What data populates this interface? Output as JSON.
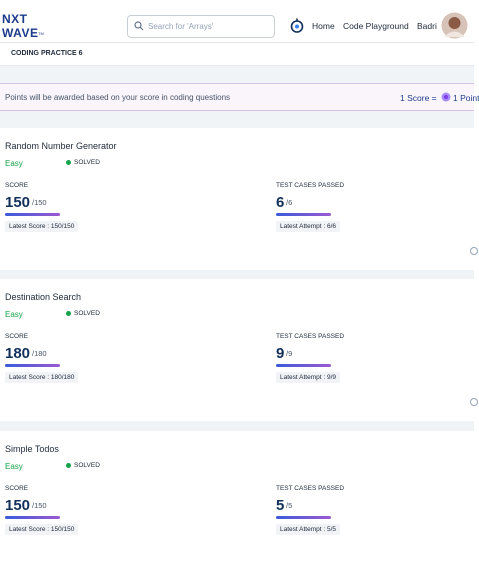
{
  "header": {
    "logo_top": "NXT",
    "logo_bottom": "WAVE",
    "logo_tm": "TM",
    "search_placeholder": "Search for 'Arrays'",
    "nav": [
      "Home",
      "Code Playground",
      "Badri"
    ]
  },
  "breadcrumb": "CODING PRACTICE 6",
  "banner": {
    "text": "Points will be awarded based on your score in coding questions",
    "formula_left": "1 Score =",
    "formula_right": "1 Point"
  },
  "questions": [
    {
      "title": "Random Number Generator",
      "difficulty": "Easy",
      "status": "SOLVED",
      "score_label": "SCORE",
      "score": "150",
      "score_total": "/150",
      "latest_score": "Latest Score : 150/150",
      "tests_label": "TEST CASES PASSED",
      "tests": "6",
      "tests_total": "/6",
      "latest_attempt": "Latest Attempt : 6/6"
    },
    {
      "title": "Destination Search",
      "difficulty": "Easy",
      "status": "SOLVED",
      "score_label": "SCORE",
      "score": "180",
      "score_total": "/180",
      "latest_score": "Latest Score : 180/180",
      "tests_label": "TEST CASES PASSED",
      "tests": "9",
      "tests_total": "/9",
      "latest_attempt": "Latest Attempt : 9/9"
    },
    {
      "title": "Simple Todos",
      "difficulty": "Easy",
      "status": "SOLVED",
      "score_label": "SCORE",
      "score": "150",
      "score_total": "/150",
      "latest_score": "Latest Score : 150/150",
      "tests_label": "TEST CASES PASSED",
      "tests": "5",
      "tests_total": "/5",
      "latest_attempt": "Latest Attempt : 5/5"
    }
  ]
}
